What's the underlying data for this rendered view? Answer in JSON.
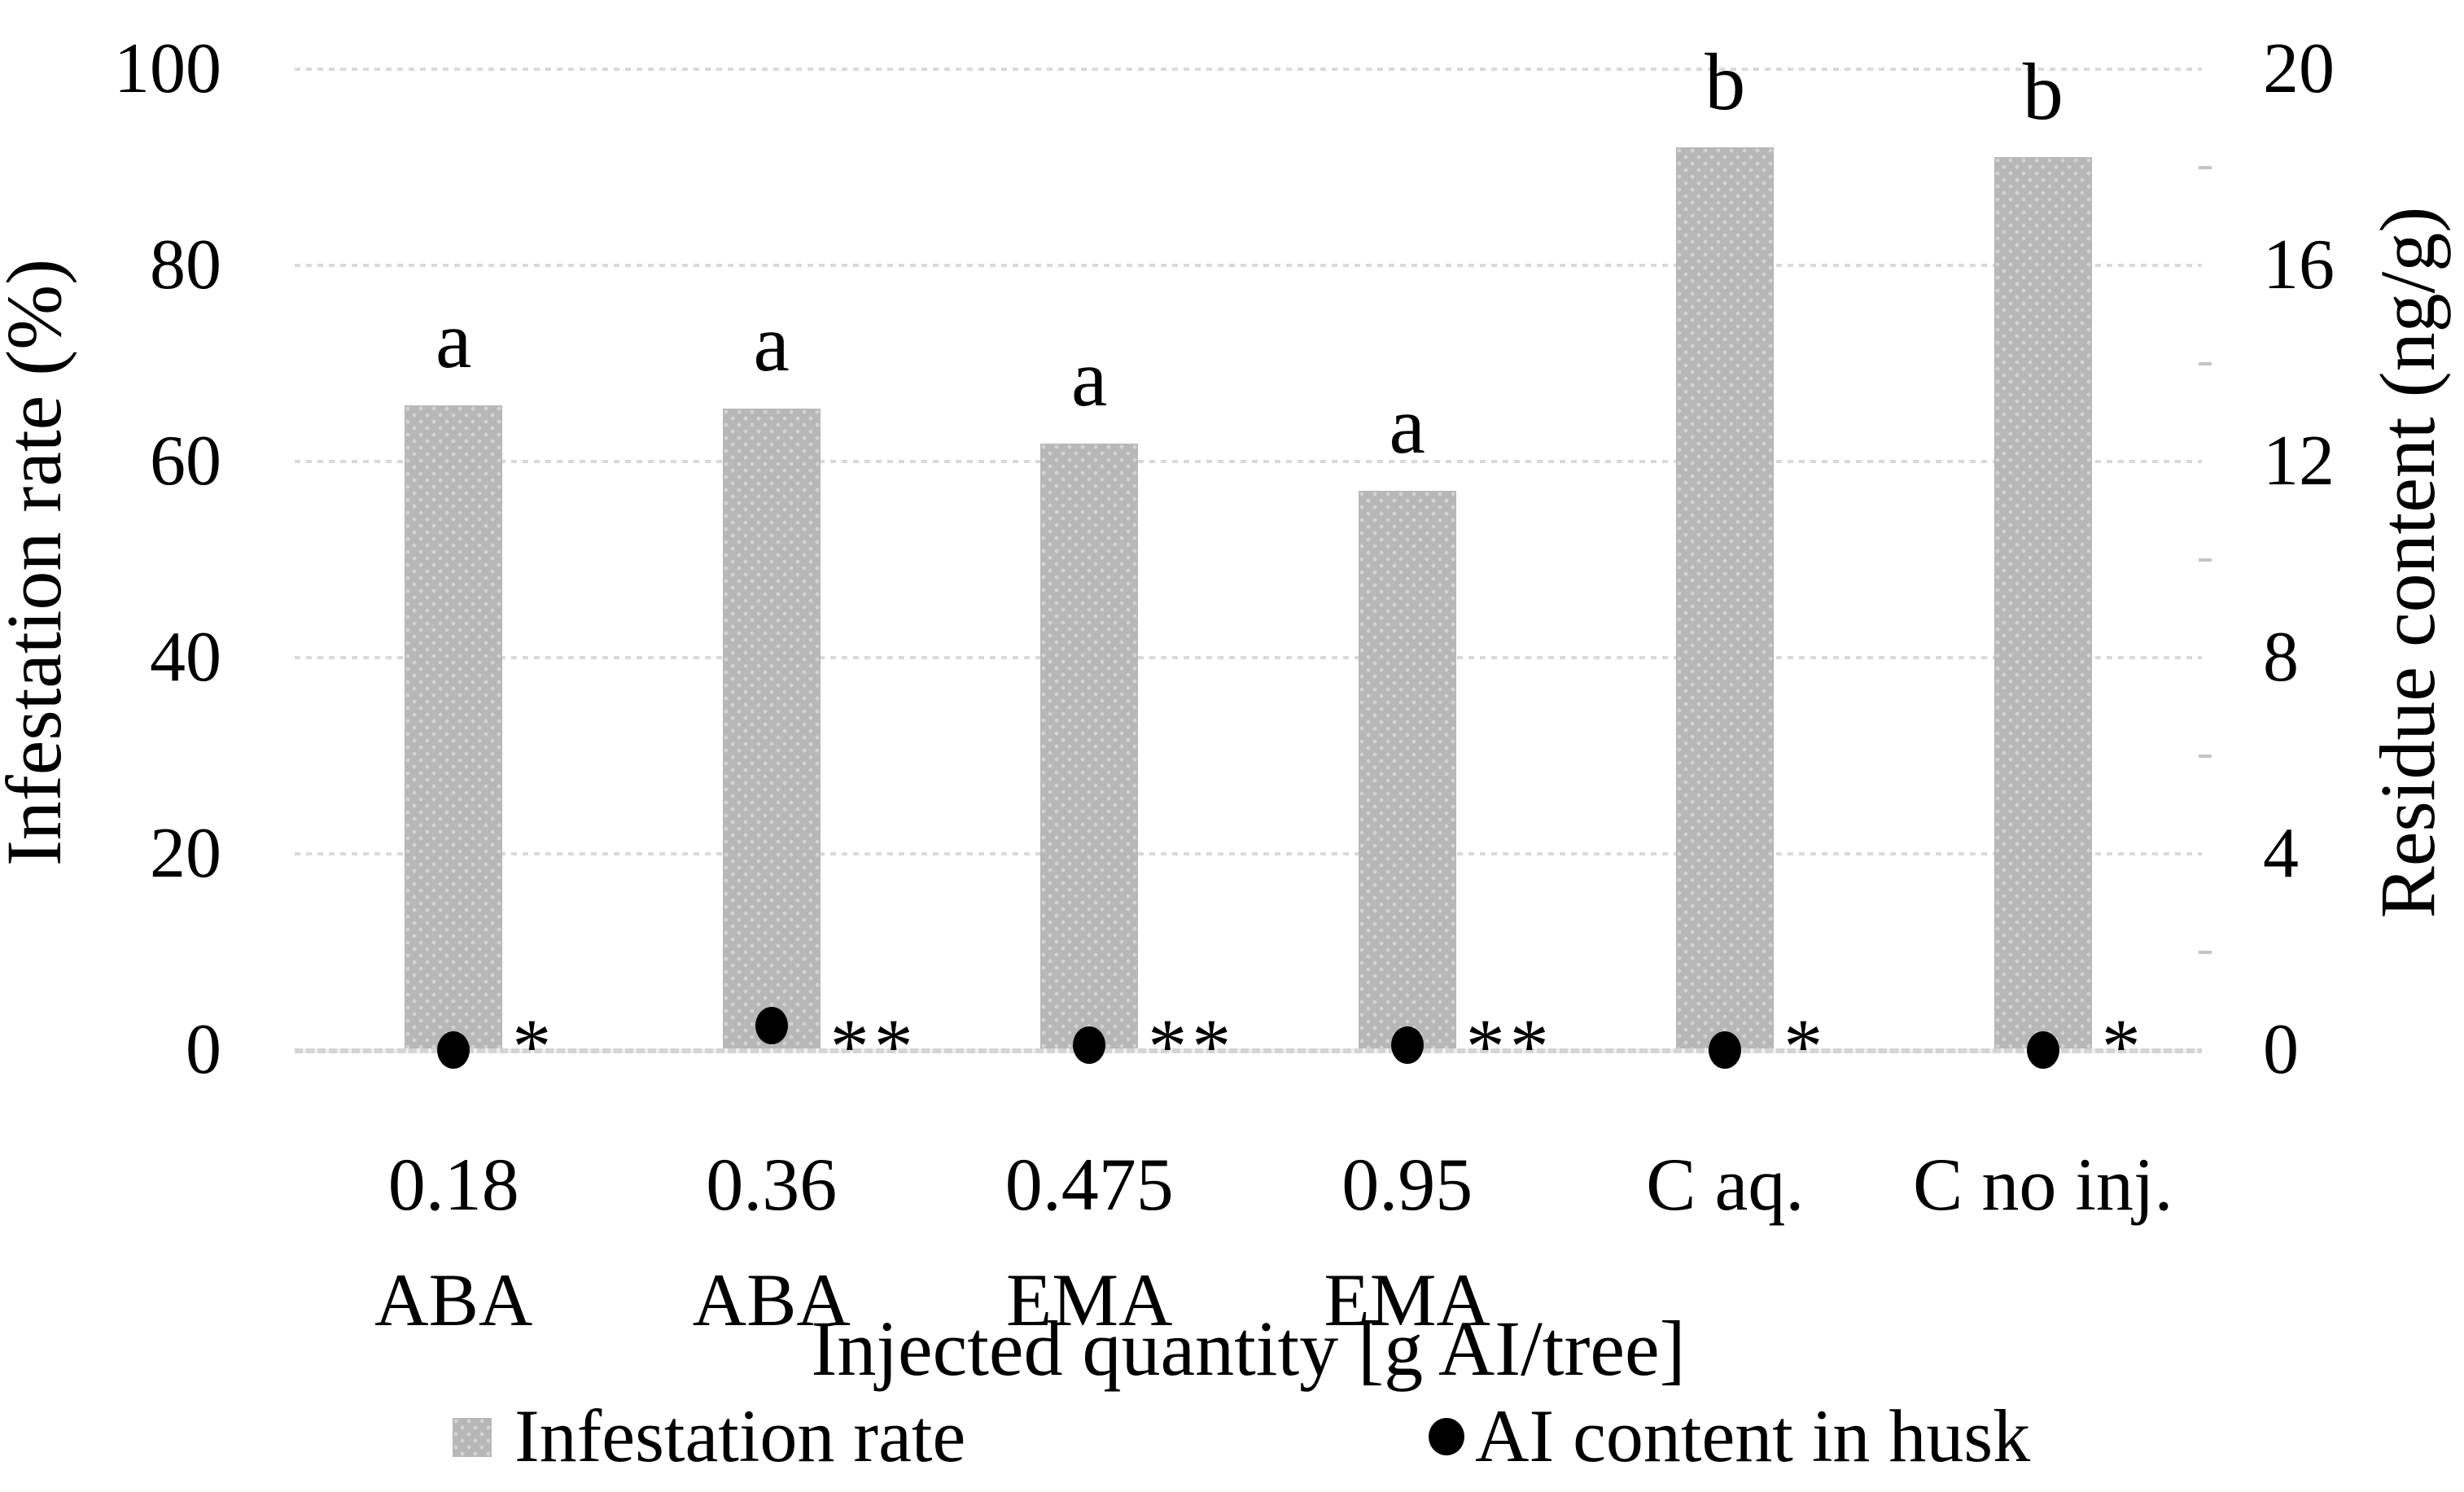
{
  "chart_data": {
    "type": "bar",
    "title": "",
    "xlabel": "Injected quantity [g AI/tree]",
    "left_axis": {
      "label": "Infestation rate (%)",
      "range": [
        0,
        100
      ],
      "ticks": [
        100,
        80,
        60,
        40,
        20,
        0
      ]
    },
    "right_axis": {
      "label": "Residue content (ng/g)",
      "range": [
        0,
        20
      ],
      "ticks": [
        20,
        16,
        12,
        8,
        4,
        0
      ]
    },
    "categories": [
      {
        "line1": "0.18",
        "line2": "ABA"
      },
      {
        "line1": "0.36",
        "line2": "ABA"
      },
      {
        "line1": "0.475",
        "line2": "EMA"
      },
      {
        "line1": "0.95",
        "line2": "EMA"
      },
      {
        "line1": "C aq.",
        "line2": ""
      },
      {
        "line1": "C no inj.",
        "line2": ""
      }
    ],
    "series": [
      {
        "name": "Infestation rate",
        "type": "bar",
        "axis": "left",
        "values": [
          65.7,
          65.4,
          61.8,
          57.0,
          92.0,
          91.0
        ],
        "group_letters": [
          "a",
          "a",
          "a",
          "a",
          "b",
          "b"
        ]
      },
      {
        "name": "AI content in husk",
        "type": "point",
        "axis": "right",
        "values": [
          0,
          0.5,
          0.1,
          0.1,
          0,
          0
        ],
        "significance": [
          "*",
          "**",
          "**",
          "**",
          "*",
          "*"
        ]
      }
    ],
    "legend": [
      {
        "marker": "bar-swatch",
        "label": "Infestation rate"
      },
      {
        "marker": "dot",
        "label": "AI content in husk"
      }
    ],
    "legend_position": "bottom",
    "grid": true,
    "colors": {
      "bar_fill": "#b7b7b7",
      "bar_pattern_dots": "#d2d2d2",
      "gridline": "#d9d9d9",
      "marker": "#000000",
      "text": "#000000",
      "background": "#ffffff"
    }
  }
}
